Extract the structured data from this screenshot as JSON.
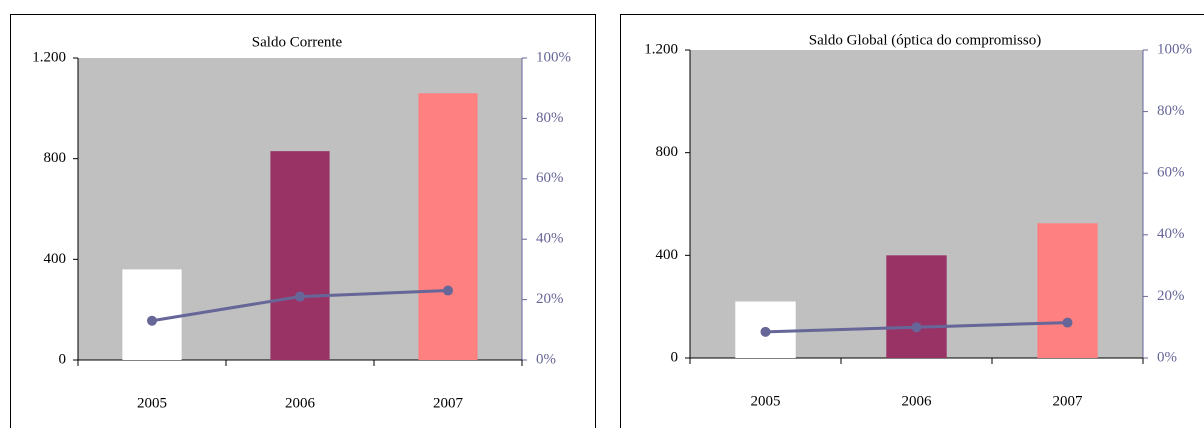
{
  "chart_data": [
    {
      "type": "bar",
      "title": "Saldo Corrente",
      "categories": [
        "2005",
        "2006",
        "2007"
      ],
      "series": [
        {
          "values": [
            360,
            830,
            1060
          ],
          "colors": [
            "#ffffff",
            "#993366",
            "#ff8080"
          ]
        },
        {
          "type": "line",
          "axis": "y2",
          "color": "#666699",
          "values": [
            13,
            21,
            23
          ]
        }
      ],
      "ylim": [
        0,
        1200
      ],
      "yticks": [
        0,
        400,
        800,
        {
          "value": 1200,
          "label": "1.200"
        }
      ],
      "y2lim": [
        0,
        100
      ],
      "y2ticks": [
        {
          "value": 0,
          "label": "0%"
        },
        {
          "value": 20,
          "label": "20%"
        },
        {
          "value": 40,
          "label": "40%"
        },
        {
          "value": 60,
          "label": "60%"
        },
        {
          "value": 80,
          "label": "80%"
        },
        {
          "value": 100,
          "label": "100%"
        }
      ],
      "plot_background": "#c0c0c0"
    },
    {
      "type": "bar",
      "title": "Saldo Global (óptica do compromisso)",
      "categories": [
        "2005",
        "2006",
        "2007"
      ],
      "series": [
        {
          "values": [
            220,
            400,
            525
          ],
          "colors": [
            "#ffffff",
            "#993366",
            "#ff8080"
          ]
        },
        {
          "type": "line",
          "axis": "y2",
          "color": "#666699",
          "values": [
            8.5,
            10,
            11.5
          ]
        }
      ],
      "ylim": [
        0,
        1200
      ],
      "yticks": [
        0,
        400,
        800,
        {
          "value": 1200,
          "label": "1.200"
        }
      ],
      "y2lim": [
        0,
        100
      ],
      "y2ticks": [
        {
          "value": 0,
          "label": "0%"
        },
        {
          "value": 20,
          "label": "20%"
        },
        {
          "value": 40,
          "label": "40%"
        },
        {
          "value": 60,
          "label": "60%"
        },
        {
          "value": 80,
          "label": "80%"
        },
        {
          "value": 100,
          "label": "100%"
        }
      ],
      "plot_background": "#c0c0c0"
    }
  ]
}
